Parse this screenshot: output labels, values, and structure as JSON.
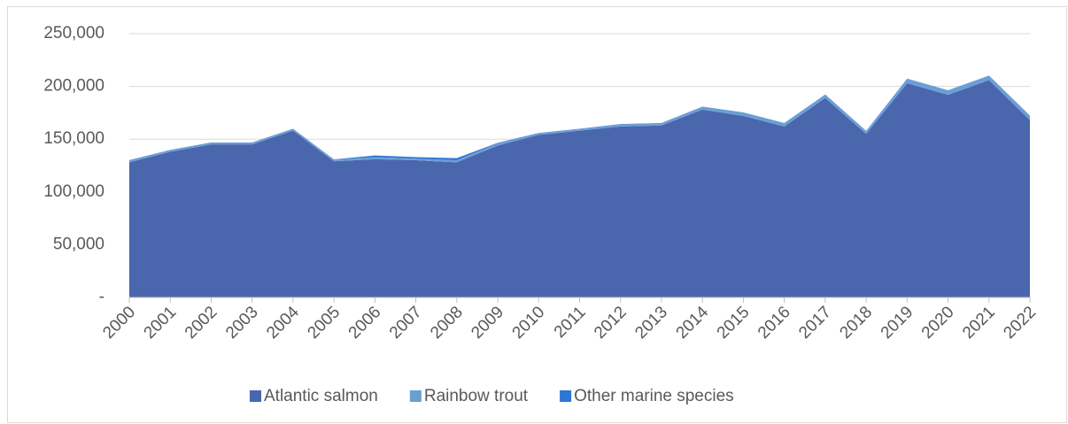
{
  "chart_data": {
    "type": "stacked-area",
    "categories": [
      "2000",
      "2001",
      "2002",
      "2003",
      "2004",
      "2005",
      "2006",
      "2007",
      "2008",
      "2009",
      "2010",
      "2011",
      "2012",
      "2013",
      "2014",
      "2015",
      "2016",
      "2017",
      "2018",
      "2019",
      "2020",
      "2021",
      "2022"
    ],
    "series": [
      {
        "name": "Atlantic salmon",
        "color": "#4a66ad",
        "values": [
          128000,
          138000,
          145000,
          145000,
          158000,
          129000,
          131000,
          130000,
          128000,
          144000,
          154000,
          158000,
          162000,
          163000,
          178000,
          172000,
          162000,
          189000,
          155000,
          203000,
          192000,
          206000,
          168000
        ]
      },
      {
        "name": "Rainbow trout",
        "color": "#6a9fd4",
        "values": [
          1500,
          1500,
          1500,
          1500,
          1500,
          1500,
          2000,
          1500,
          2000,
          2000,
          1500,
          1500,
          2000,
          2000,
          2500,
          3000,
          3000,
          3000,
          2500,
          4000,
          4000,
          4000,
          4000
        ]
      },
      {
        "name": "Other marine species",
        "color": "#2e75d6",
        "values": [
          500,
          300,
          300,
          300,
          300,
          300,
          1500,
          1500,
          2000,
          500,
          300,
          300,
          300,
          300,
          300,
          300,
          300,
          300,
          300,
          300,
          300,
          300,
          300
        ]
      }
    ],
    "ylim": [
      0,
      250000
    ],
    "yticks": [
      {
        "value": 0,
        "label": "-"
      },
      {
        "value": 50000,
        "label": "50,000"
      },
      {
        "value": 100000,
        "label": "100,000"
      },
      {
        "value": 150000,
        "label": "150,000"
      },
      {
        "value": 200000,
        "label": "200,000"
      },
      {
        "value": 250000,
        "label": "250,000"
      }
    ],
    "grid": true,
    "legend": "bottom"
  }
}
